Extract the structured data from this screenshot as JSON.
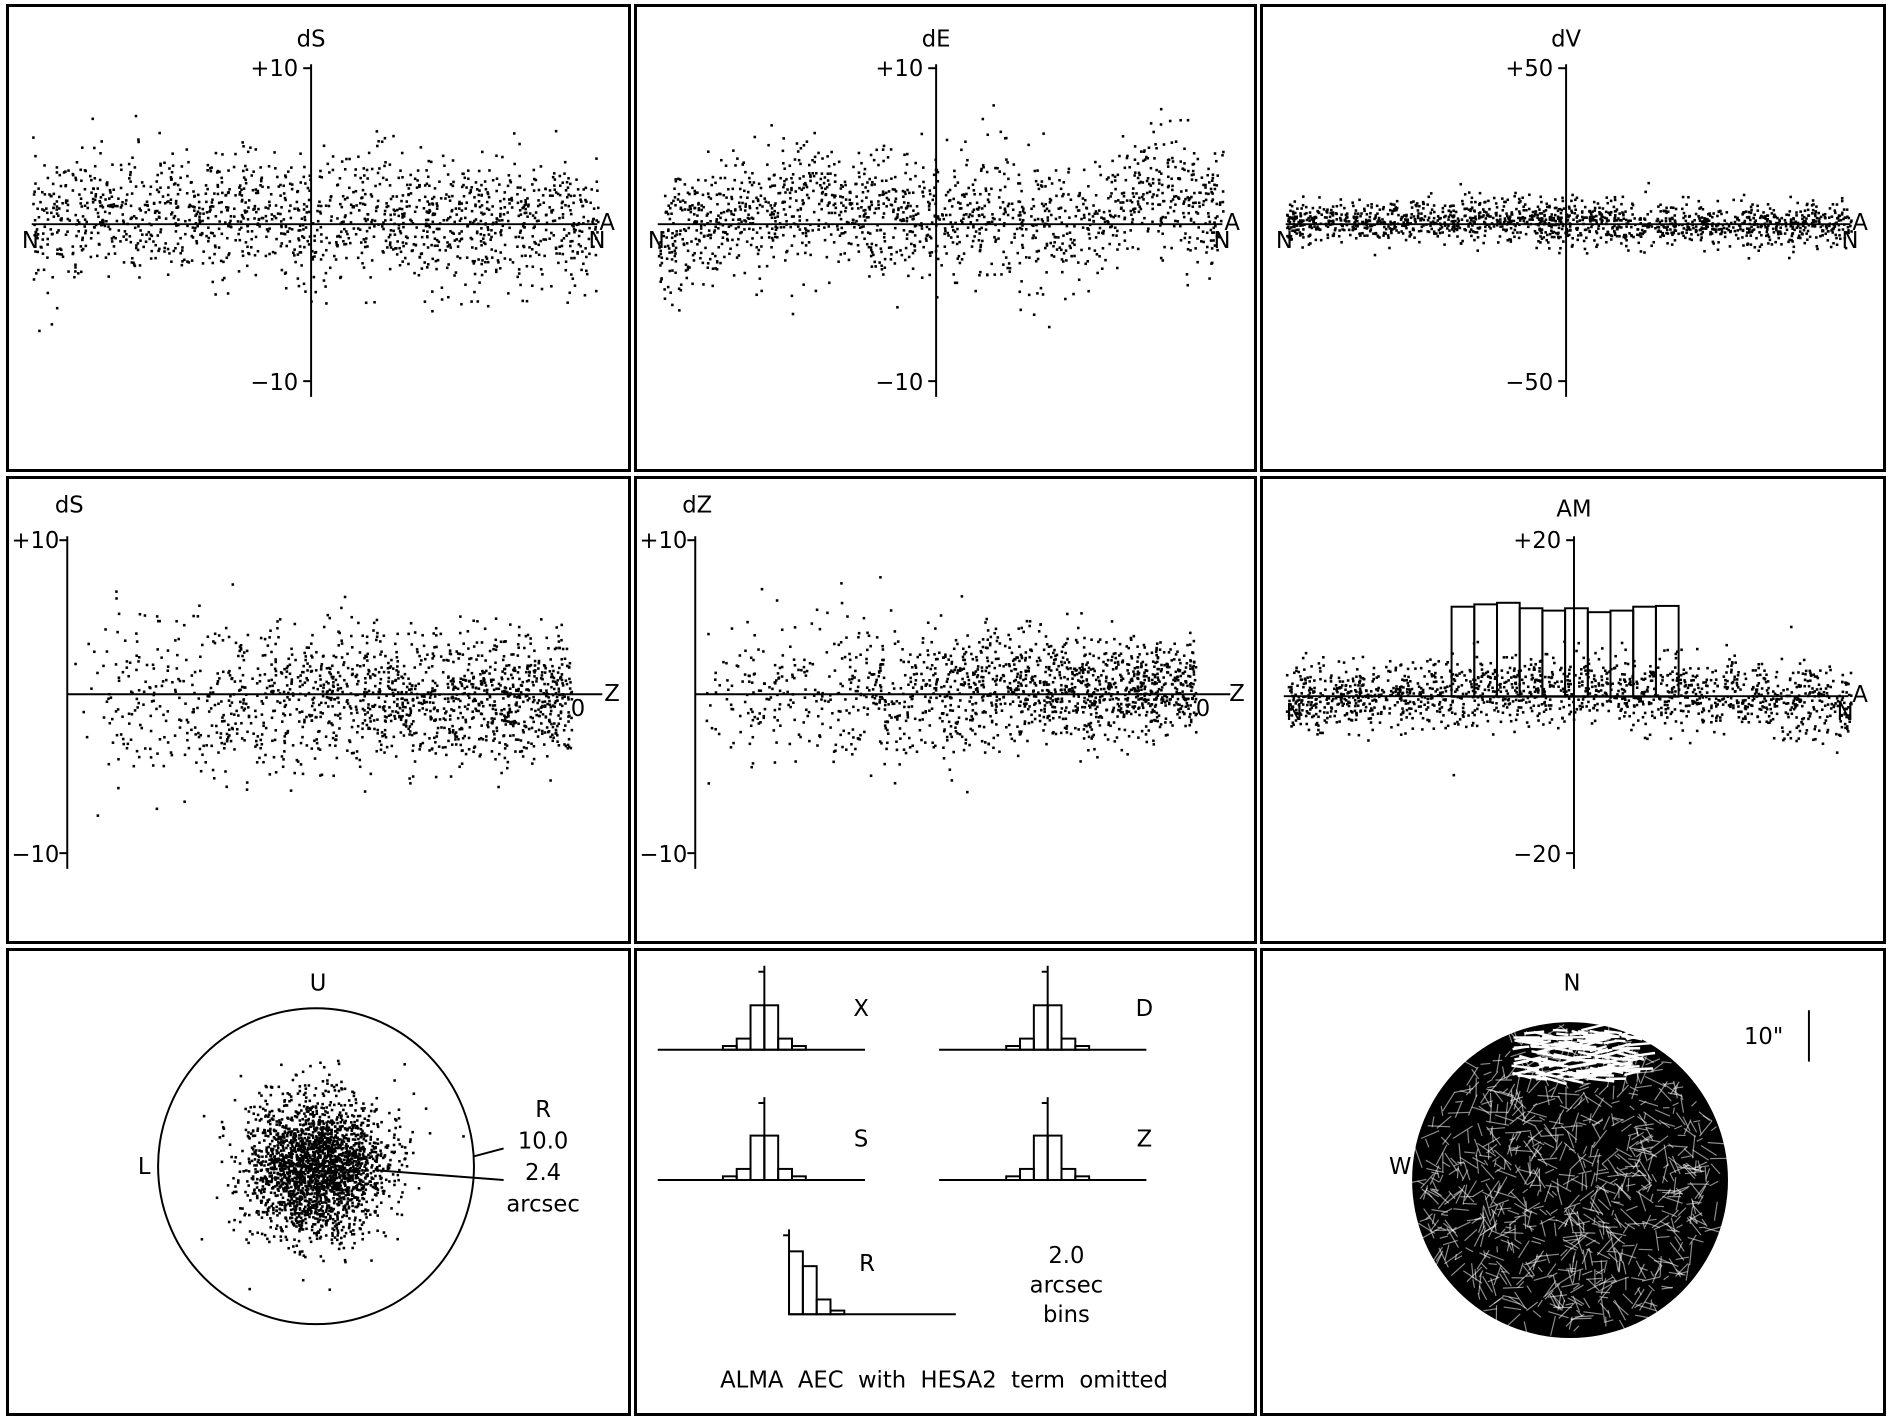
{
  "figure": {
    "footer": "ALMA  AEC  with  HESA2  term  omitted"
  },
  "colors": {
    "ink": "#000000",
    "background": "#ffffff"
  },
  "chart_data": [
    {
      "type": "scatter",
      "id": "dS_vs_A",
      "title": "dS",
      "ylim": [
        -10,
        10
      ],
      "yticks": [
        "+10",
        "−10"
      ],
      "end_labels": [
        "N",
        "N",
        "A"
      ],
      "series": [
        {
          "x": [
            0,
            45,
            90,
            100,
            135,
            180,
            225,
            270,
            315,
            360
          ],
          "y": [
            0.2,
            0.8,
            0.6,
            0.3,
            0.6,
            0.0,
            1.1,
            -0.2,
            0.5,
            0.0
          ]
        }
      ],
      "scatter_sigma": 2.0,
      "scatter_count": 1500
    },
    {
      "type": "scatter",
      "id": "dE_vs_A",
      "title": "dE",
      "ylim": [
        -10,
        10
      ],
      "yticks": [
        "+10",
        "−10"
      ],
      "end_labels": [
        "N",
        "N",
        "A"
      ],
      "series": [
        {
          "x": [
            0,
            45,
            90,
            135,
            180,
            225,
            270,
            315,
            360
          ],
          "y": [
            -1.0,
            0.6,
            1.2,
            1.0,
            0.5,
            0.6,
            -0.2,
            2.5,
            0.5
          ]
        }
      ],
      "scatter_sigma": 2.0,
      "scatter_count": 1500
    },
    {
      "type": "scatter",
      "id": "dV_vs_A",
      "title": "dV",
      "ylim": [
        -50,
        50
      ],
      "yticks": [
        "+50",
        "−50"
      ],
      "end_labels": [
        "N",
        "N",
        "A"
      ],
      "series": [
        {
          "x": [
            0,
            90,
            180,
            270,
            360
          ],
          "y": [
            1.0,
            2.0,
            1.0,
            0.0,
            1.0
          ]
        }
      ],
      "scatter_sigma": 3.5,
      "scatter_count": 1500
    },
    {
      "type": "scatter",
      "id": "dS_vs_Z",
      "title": "dS",
      "ylim": [
        -10,
        10
      ],
      "yticks": [
        "+10",
        "−10"
      ],
      "end_labels": [
        "0",
        "Z"
      ],
      "series": [
        {
          "x": [
            0,
            90
          ],
          "y": [
            0.0,
            0.0
          ]
        }
      ],
      "scatter_sigma": 2.2,
      "scatter_count": 1500
    },
    {
      "type": "scatter",
      "id": "dZ_vs_Z",
      "title": "dZ",
      "ylim": [
        -10,
        10
      ],
      "yticks": [
        "+10",
        "−10"
      ],
      "end_labels": [
        "0",
        "Z"
      ],
      "series": [
        {
          "x": [
            0,
            90
          ],
          "y": [
            0.0,
            0.8
          ]
        }
      ],
      "scatter_sigma": 1.8,
      "scatter_count": 1500
    },
    {
      "type": "scatter",
      "id": "AM_vs_A",
      "title": "AM",
      "ylim": [
        -20,
        20
      ],
      "yticks": [
        "+20",
        "−20"
      ],
      "end_labels": [
        "N",
        "N",
        "A"
      ],
      "series": [
        {
          "x": [
            0,
            90,
            180,
            270,
            360
          ],
          "y": [
            -0.5,
            0.5,
            1.5,
            0.5,
            -1.0
          ]
        }
      ],
      "histogram_bins": [
        5.5,
        5.8,
        6.0,
        5.3,
        5.0,
        5.3,
        4.8,
        5.0,
        5.5,
        5.6
      ],
      "scatter_sigma": 2.2,
      "scatter_count": 1500
    },
    {
      "type": "scatter",
      "id": "residual_map",
      "labels": {
        "top": "U",
        "left": "L",
        "right": "R"
      },
      "rings": [
        "10.0",
        "2.4"
      ],
      "unit": "arcsec",
      "scatter_sigma": 2.4,
      "scatter_count": 2400
    },
    {
      "type": "bar",
      "id": "histograms",
      "panels": [
        {
          "name": "X",
          "values": [
            0.05,
            0.15,
            0.6,
            0.6,
            0.15,
            0.05
          ]
        },
        {
          "name": "D",
          "values": [
            0.05,
            0.15,
            0.6,
            0.6,
            0.15,
            0.05
          ]
        },
        {
          "name": "S",
          "values": [
            0.05,
            0.15,
            0.6,
            0.6,
            0.15,
            0.05
          ]
        },
        {
          "name": "Z",
          "values": [
            0.05,
            0.15,
            0.6,
            0.6,
            0.15,
            0.05
          ]
        },
        {
          "name": "R",
          "values": [
            0.85,
            0.65,
            0.2,
            0.05,
            0.0,
            0.0
          ]
        }
      ],
      "bin_width": "2.0",
      "bin_unit": "arcsec",
      "bin_word": "bins"
    },
    {
      "type": "scatter",
      "id": "sky_vectors",
      "labels": {
        "top": "N",
        "left": "W"
      },
      "scale_label": "10\""
    }
  ]
}
